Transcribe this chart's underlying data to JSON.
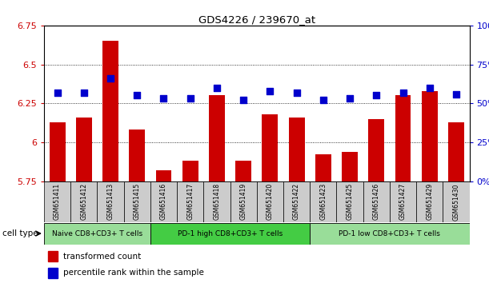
{
  "title": "GDS4226 / 239670_at",
  "samples": [
    "GSM651411",
    "GSM651412",
    "GSM651413",
    "GSM651415",
    "GSM651416",
    "GSM651417",
    "GSM651418",
    "GSM651419",
    "GSM651420",
    "GSM651422",
    "GSM651423",
    "GSM651425",
    "GSM651426",
    "GSM651427",
    "GSM651429",
    "GSM651430"
  ],
  "bar_values": [
    6.13,
    6.16,
    6.65,
    6.08,
    5.82,
    5.88,
    6.3,
    5.88,
    6.18,
    6.16,
    5.92,
    5.94,
    6.15,
    6.3,
    6.33,
    6.13
  ],
  "percentile_values": [
    57,
    57,
    66,
    55,
    53,
    53,
    60,
    52,
    58,
    57,
    52,
    53,
    55,
    57,
    60,
    56
  ],
  "ylim_left": [
    5.75,
    6.75
  ],
  "ylim_right": [
    0,
    100
  ],
  "yticks_left": [
    5.75,
    6.0,
    6.25,
    6.5,
    6.75
  ],
  "yticks_right": [
    0,
    25,
    50,
    75,
    100
  ],
  "ytick_labels_left": [
    "5.75",
    "6",
    "6.25",
    "6.5",
    "6.75"
  ],
  "ytick_labels_right": [
    "0%",
    "25%",
    "50%",
    "75%",
    "100%"
  ],
  "bar_color": "#cc0000",
  "dot_color": "#0000cc",
  "grid_color": "#000000",
  "bg_plot": "#ffffff",
  "bg_xlabels": "#cccccc",
  "group_labels": [
    "Naive CD8+CD3+ T cells",
    "PD-1 high CD8+CD3+ T cells",
    "PD-1 low CD8+CD3+ T cells"
  ],
  "group_ranges": [
    [
      0,
      3
    ],
    [
      4,
      9
    ],
    [
      10,
      15
    ]
  ],
  "group_bg_colors": [
    "#99dd99",
    "#44cc44",
    "#99dd99"
  ],
  "legend_bar_label": "transformed count",
  "legend_dot_label": "percentile rank within the sample",
  "cell_type_label": "cell type",
  "bar_width": 0.6,
  "dot_size": 35
}
